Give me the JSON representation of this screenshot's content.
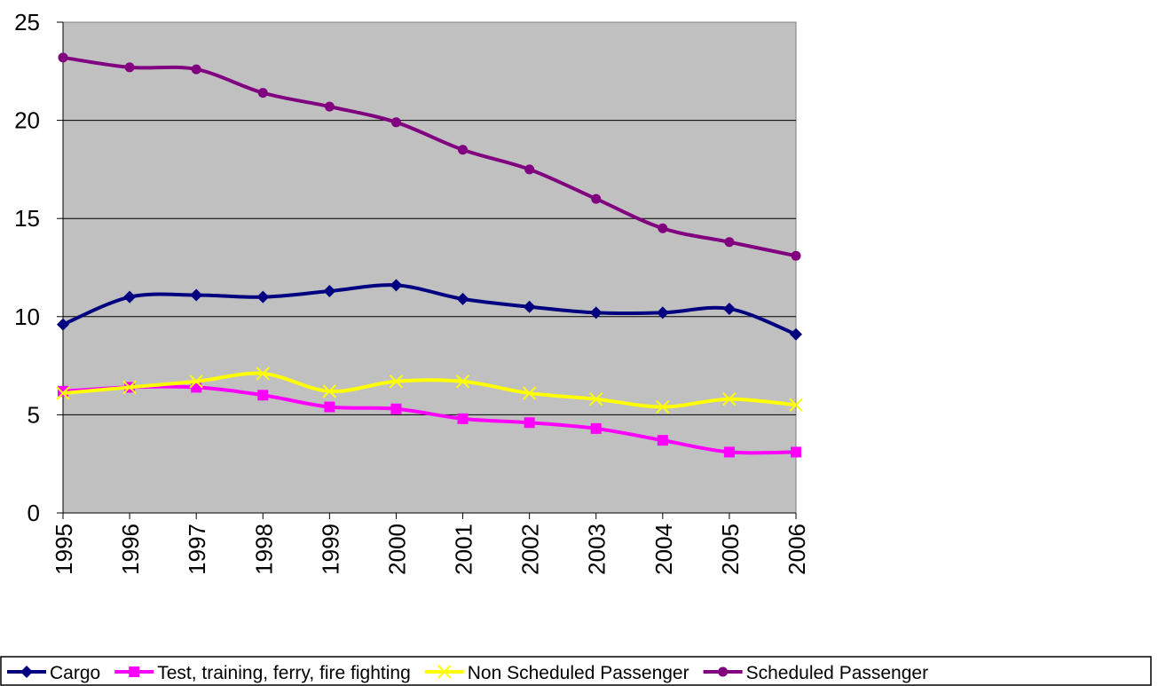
{
  "chart_data": {
    "type": "line",
    "categories": [
      "1995",
      "1996",
      "1997",
      "1998",
      "1999",
      "2000",
      "2001",
      "2002",
      "2003",
      "2004",
      "2005",
      "2006"
    ],
    "series": [
      {
        "name": "Cargo",
        "color": "#000080",
        "marker": "diamond",
        "values": [
          9.6,
          11.0,
          11.1,
          11.0,
          11.3,
          11.6,
          10.9,
          10.5,
          10.2,
          10.2,
          10.4,
          9.1
        ]
      },
      {
        "name": "Test, training, ferry, fire fighting",
        "color": "#ff00ff",
        "marker": "square",
        "values": [
          6.2,
          6.4,
          6.4,
          6.0,
          5.4,
          5.3,
          4.8,
          4.6,
          4.3,
          3.7,
          3.1,
          3.1
        ]
      },
      {
        "name": "Non Scheduled Passenger",
        "color": "#ffff00",
        "marker": "x",
        "values": [
          6.1,
          6.4,
          6.7,
          7.1,
          6.2,
          6.7,
          6.7,
          6.1,
          5.8,
          5.4,
          5.8,
          5.5
        ]
      },
      {
        "name": "Scheduled Passenger",
        "color": "#800080",
        "marker": "circle",
        "values": [
          23.2,
          22.7,
          22.6,
          21.4,
          20.7,
          19.9,
          18.5,
          17.5,
          16.0,
          14.5,
          13.8,
          13.1
        ]
      }
    ],
    "ylim": [
      0,
      25
    ],
    "yticks": [
      0,
      5,
      10,
      15,
      20,
      25
    ],
    "grid": true,
    "legend": "bottom"
  }
}
